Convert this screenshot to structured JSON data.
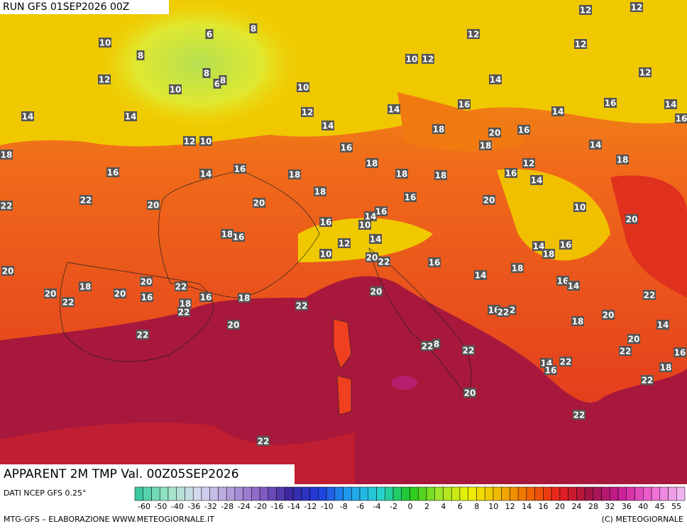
{
  "header": {
    "run": "RUN GFS 01SEP2026 00Z"
  },
  "map": {
    "labels": [
      10,
      8,
      6,
      8,
      12,
      10,
      8,
      6,
      8,
      10,
      12,
      14,
      14,
      12,
      10,
      14,
      10,
      12,
      12,
      12,
      12,
      12,
      12,
      14,
      14,
      16,
      14,
      16,
      14,
      16,
      18,
      20,
      16,
      18,
      16,
      14,
      18,
      16,
      14,
      16,
      18,
      18,
      18,
      18,
      16,
      12,
      14,
      18,
      22,
      22,
      20,
      20,
      18,
      16,
      20,
      10,
      20,
      16,
      16,
      14,
      10,
      18,
      16,
      12,
      14,
      10,
      20,
      22,
      16,
      14,
      18,
      14,
      18,
      16,
      20,
      20,
      18,
      20,
      16,
      22,
      20,
      22,
      18,
      16,
      18,
      22,
      22,
      20,
      16,
      14,
      22,
      16,
      22,
      2,
      20,
      18,
      14,
      20,
      22,
      20,
      22,
      16,
      22,
      8,
      22,
      14,
      22,
      16,
      18,
      22,
      20,
      22,
      22
    ]
  },
  "footer": {
    "title": "APPARENT 2M TMP Val. 00Z05SEP2026",
    "source": "DATI NCEP GFS 0.25°",
    "credit": "MTG-GFS – ELABORAZIONE WWW.METEOGIORNALE.IT",
    "copyright": "(C) METEOGIORNALE"
  },
  "legend": {
    "ticks": [
      -60,
      -50,
      -40,
      -36,
      -32,
      -28,
      -24,
      -20,
      -16,
      -14,
      -12,
      -10,
      -8,
      -6,
      -4,
      -2,
      0,
      2,
      4,
      6,
      8,
      10,
      12,
      14,
      16,
      20,
      24,
      28,
      32,
      36,
      40,
      45,
      55
    ],
    "colors": [
      "#3cc8a0",
      "#a0e6c8",
      "#d8d8f0",
      "#b4a0dc",
      "#8c64c8",
      "#3c28a0",
      "#1e3cdc",
      "#1ea0f0",
      "#28d2d2",
      "#1ec81e",
      "#a0e628",
      "#f0f000",
      "#f0b400",
      "#f06400",
      "#e61e1e",
      "#a01446",
      "#c81e96",
      "#f064d2",
      "#f0b4f0"
    ]
  }
}
